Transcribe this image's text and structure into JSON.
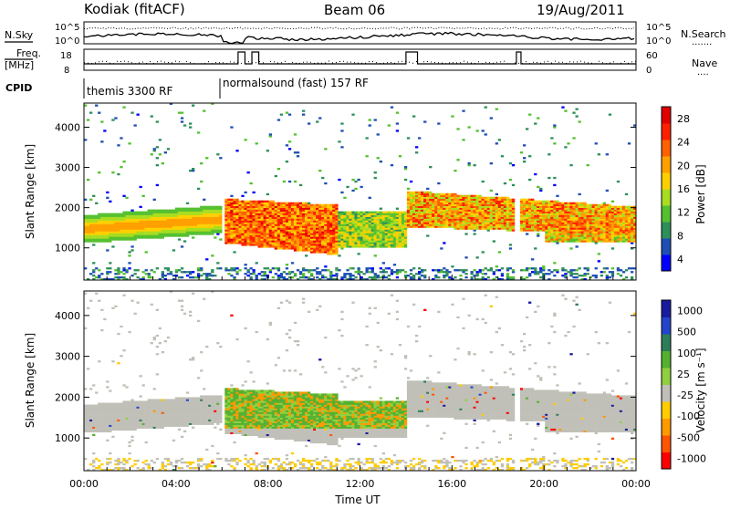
{
  "header": {
    "station": "Kodiak (fitACF)",
    "beam": "Beam 06",
    "date": "19/Aug/2011"
  },
  "strip": {
    "nsky_label": "N.Sky",
    "nsearch_label": "N.Search",
    "nsearch_dots": "·······",
    "noise_ticks_left": [
      "10^5",
      "10^0"
    ],
    "noise_ticks_right": [
      "10^5",
      "10^0"
    ],
    "freq_label_1": "Freq.",
    "freq_label_2": "[MHz]",
    "freq_ticks": [
      "18",
      "8"
    ],
    "nave_label": "Nave",
    "nave_dots": "····",
    "nave_ticks": [
      "60",
      "0"
    ],
    "cpid_label": "CPID",
    "cpid_1": "themis 3300 RF",
    "cpid_2": "normalsound (fast) 157 RF"
  },
  "colors": {
    "power": [
      "#0000ff",
      "#1f4fb4",
      "#2f8f5a",
      "#55c030",
      "#a8dd20",
      "#ffd000",
      "#ffa000",
      "#ff6000",
      "#ff2000",
      "#e00000"
    ],
    "velocity": [
      "#1a1aa0",
      "#2244cc",
      "#2e7d5a",
      "#55b030",
      "#8fd040",
      "#c0c0b8",
      "#ffcc00",
      "#ff9900",
      "#ff5500",
      "#ff0000"
    ],
    "gray": "#c0c0b8"
  },
  "chart_data": [
    {
      "type": "heatmap",
      "panel": "power",
      "ylabel": "Slant Range [km]",
      "xlabel": "",
      "ylim": [
        200,
        4600
      ],
      "yticks": [
        "1000",
        "2000",
        "3000",
        "4000"
      ],
      "xlim_hours": [
        0,
        24
      ],
      "colorbar_label": "Power [dB]",
      "colorbar_ticks": [
        "4",
        "8",
        "12",
        "16",
        "20",
        "24",
        "28"
      ],
      "colorbar_range": [
        0,
        30
      ]
    },
    {
      "type": "heatmap",
      "panel": "velocity",
      "ylabel": "Slant Range [km]",
      "xlabel": "Time UT",
      "ylim": [
        200,
        4600
      ],
      "yticks": [
        "1000",
        "2000",
        "3000",
        "4000"
      ],
      "xticks": [
        "00:00",
        "04:00",
        "08:00",
        "12:00",
        "16:00",
        "20:00",
        "00:00"
      ],
      "xlim_hours": [
        0,
        24
      ],
      "colorbar_label": "Velocity [m s⁻¹]",
      "colorbar_ticks": [
        "1000",
        "500",
        "100",
        "25",
        "-25",
        "-100",
        "-500",
        "-1000"
      ]
    }
  ]
}
